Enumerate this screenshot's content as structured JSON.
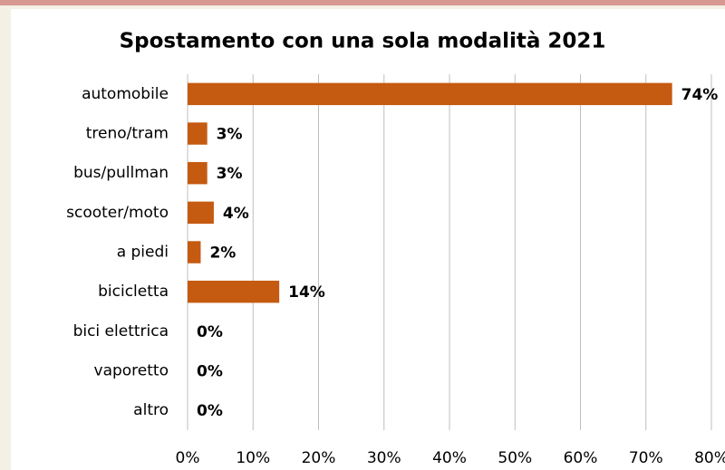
{
  "chart_data": {
    "type": "bar",
    "orientation": "horizontal",
    "title": "Spostamento con una sola modalità 2021",
    "categories": [
      "automobile",
      "treno/tram",
      "bus/pullman",
      "scooter/moto",
      "a piedi",
      "bicicletta",
      "bici elettrica",
      "vaporetto",
      "altro"
    ],
    "values": [
      74,
      3,
      3,
      4,
      2,
      14,
      0,
      0,
      0
    ],
    "value_labels": [
      "74%",
      "3%",
      "3%",
      "4%",
      "2%",
      "14%",
      "0%",
      "0%",
      "0%"
    ],
    "color": "#c55a11",
    "xlim": [
      0,
      80
    ],
    "xticks": [
      {
        "value": 0,
        "label": "0%"
      },
      {
        "value": 10,
        "label": "10%"
      },
      {
        "value": 20,
        "label": "20%"
      },
      {
        "value": 30,
        "label": "30%"
      },
      {
        "value": 40,
        "label": "40%"
      },
      {
        "value": 50,
        "label": "50%"
      },
      {
        "value": 60,
        "label": "60%"
      },
      {
        "value": 70,
        "label": "70%"
      },
      {
        "value": 80,
        "label": "80%"
      }
    ],
    "grid": true
  }
}
